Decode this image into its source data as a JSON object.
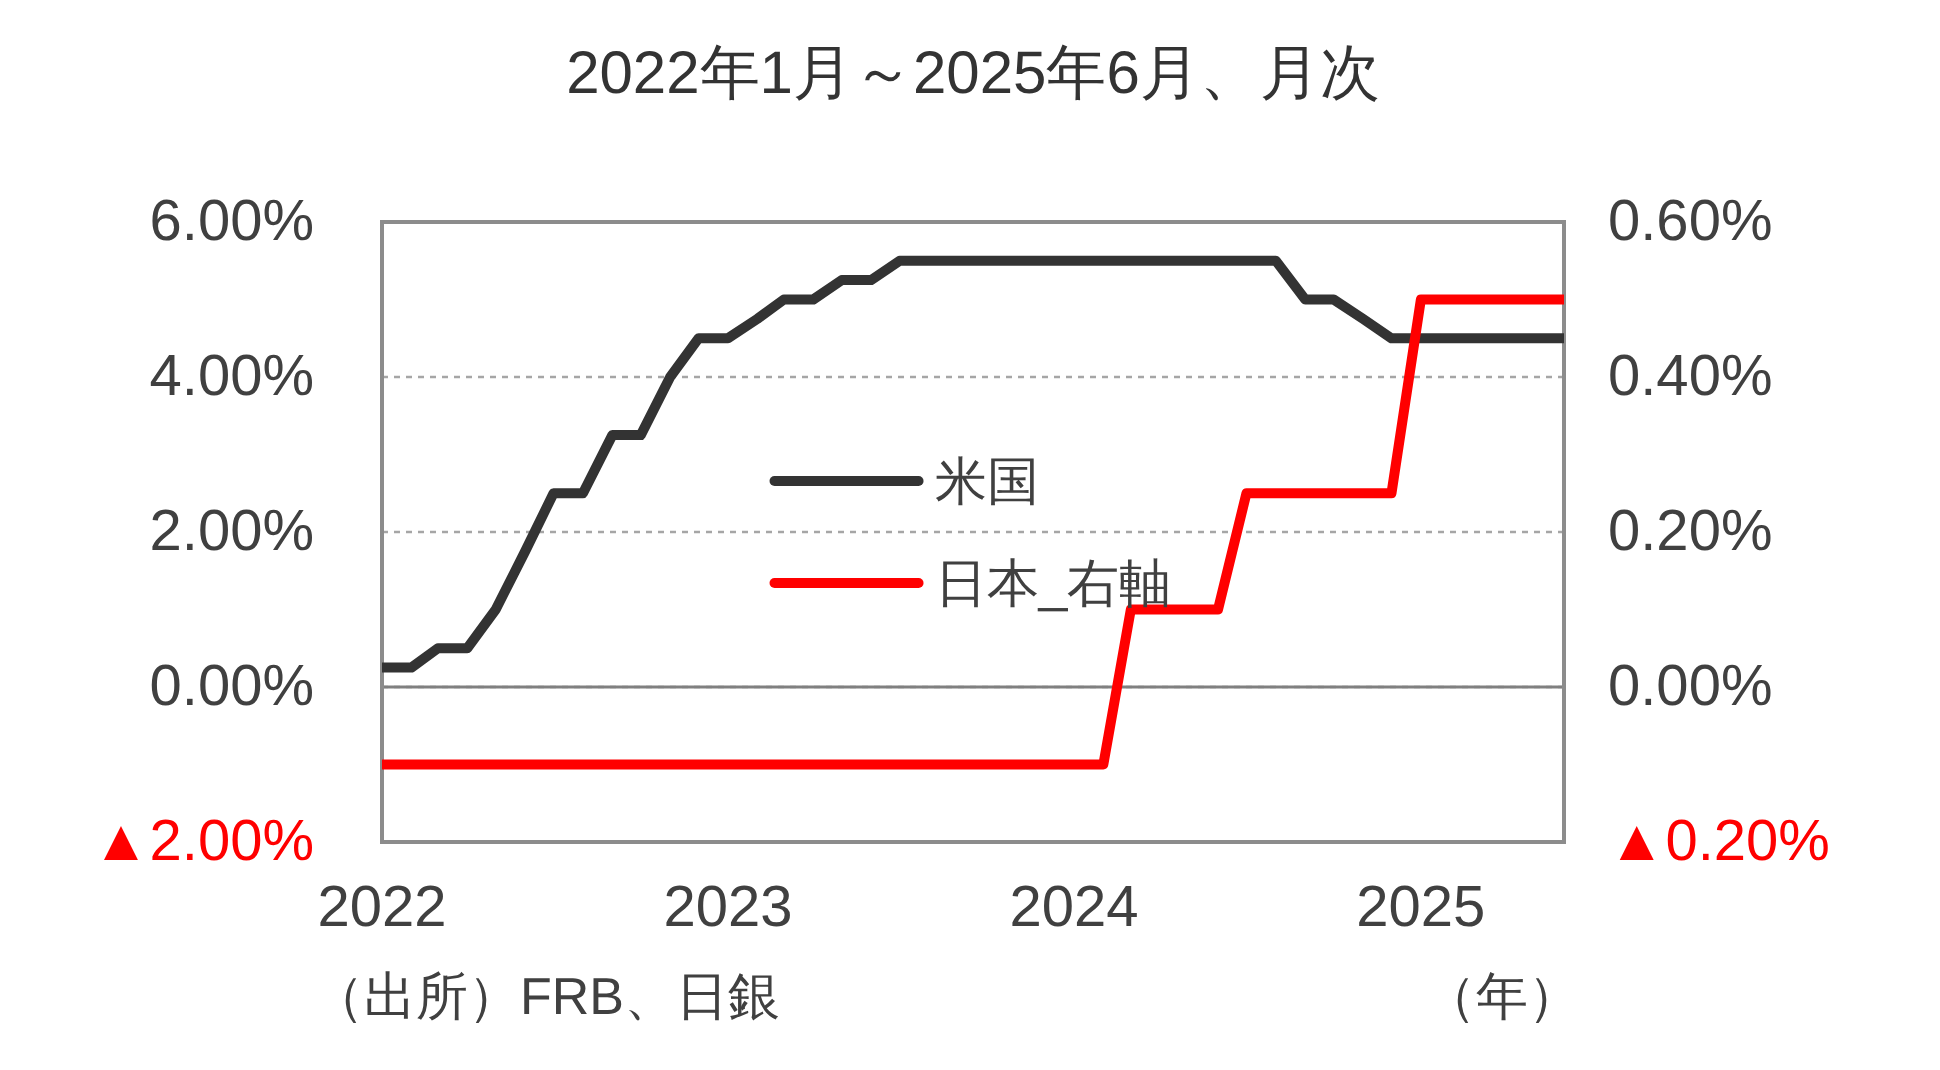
{
  "chart_data": {
    "type": "line",
    "title": "2022年1月～2025年6月、月次",
    "xlabel": "（年）",
    "annotations": [
      "（出所）FRB、日銀"
    ],
    "x": [
      "2022-01",
      "2022-02",
      "2022-03",
      "2022-04",
      "2022-05",
      "2022-06",
      "2022-07",
      "2022-08",
      "2022-09",
      "2022-10",
      "2022-11",
      "2022-12",
      "2023-01",
      "2023-02",
      "2023-03",
      "2023-04",
      "2023-05",
      "2023-06",
      "2023-07",
      "2023-08",
      "2023-09",
      "2023-10",
      "2023-11",
      "2023-12",
      "2024-01",
      "2024-02",
      "2024-03",
      "2024-04",
      "2024-05",
      "2024-06",
      "2024-07",
      "2024-08",
      "2024-09",
      "2024-10",
      "2024-11",
      "2024-12",
      "2025-01",
      "2025-02",
      "2025-03",
      "2025-04",
      "2025-05",
      "2025-06"
    ],
    "xlim": [
      "2022-01",
      "2025-06"
    ],
    "xticks": [
      {
        "value": "2022-01",
        "label": "2022"
      },
      {
        "value": "2023-01",
        "label": "2023"
      },
      {
        "value": "2024-01",
        "label": "2024"
      },
      {
        "value": "2025-01",
        "label": "2025"
      }
    ],
    "ylim": [
      -2,
      6
    ],
    "yticks": [
      {
        "value": -2,
        "label": "▲2.00%"
      },
      {
        "value": 0,
        "label": "0.00%"
      },
      {
        "value": 2,
        "label": "2.00%"
      },
      {
        "value": 4,
        "label": "4.00%"
      },
      {
        "value": 6,
        "label": "6.00%"
      }
    ],
    "y2lim": [
      -0.2,
      0.6
    ],
    "y2ticks": [
      {
        "value": -0.2,
        "label": "▲0.20%"
      },
      {
        "value": 0,
        "label": "0.00%"
      },
      {
        "value": 0.2,
        "label": "0.20%"
      },
      {
        "value": 0.4,
        "label": "0.40%"
      },
      {
        "value": 0.6,
        "label": "0.60%"
      }
    ],
    "series": [
      {
        "name": "米国",
        "color": "#333333",
        "values": [
          0.25,
          0.25,
          0.5,
          0.5,
          1,
          1.75,
          2.5,
          2.5,
          3.25,
          3.25,
          4,
          4.5,
          4.5,
          4.75,
          5,
          5,
          5.25,
          5.25,
          5.5,
          5.5,
          5.5,
          5.5,
          5.5,
          5.5,
          5.5,
          5.5,
          5.5,
          5.5,
          5.5,
          5.5,
          5.5,
          5.5,
          5,
          5,
          4.75,
          4.5,
          4.5,
          4.5,
          4.5,
          4.5,
          4.5,
          4.5
        ]
      },
      {
        "name": "日本_右軸",
        "color": "#ff0000",
        "axis": "y2",
        "values": [
          -0.1,
          -0.1,
          -0.1,
          -0.1,
          -0.1,
          -0.1,
          -0.1,
          -0.1,
          -0.1,
          -0.1,
          -0.1,
          -0.1,
          -0.1,
          -0.1,
          -0.1,
          -0.1,
          -0.1,
          -0.1,
          -0.1,
          -0.1,
          -0.1,
          -0.1,
          -0.1,
          -0.1,
          -0.1,
          -0.1,
          0.1,
          0.1,
          0.1,
          0.1,
          0.25,
          0.25,
          0.25,
          0.25,
          0.25,
          0.25,
          0.5,
          0.5,
          0.5,
          0.5,
          0.5,
          0.5
        ]
      }
    ],
    "ref_lines": [
      {
        "axis": "y",
        "value": 0,
        "color": "#808080",
        "line_style": "solid"
      }
    ],
    "grid": "y",
    "legend": "center"
  }
}
